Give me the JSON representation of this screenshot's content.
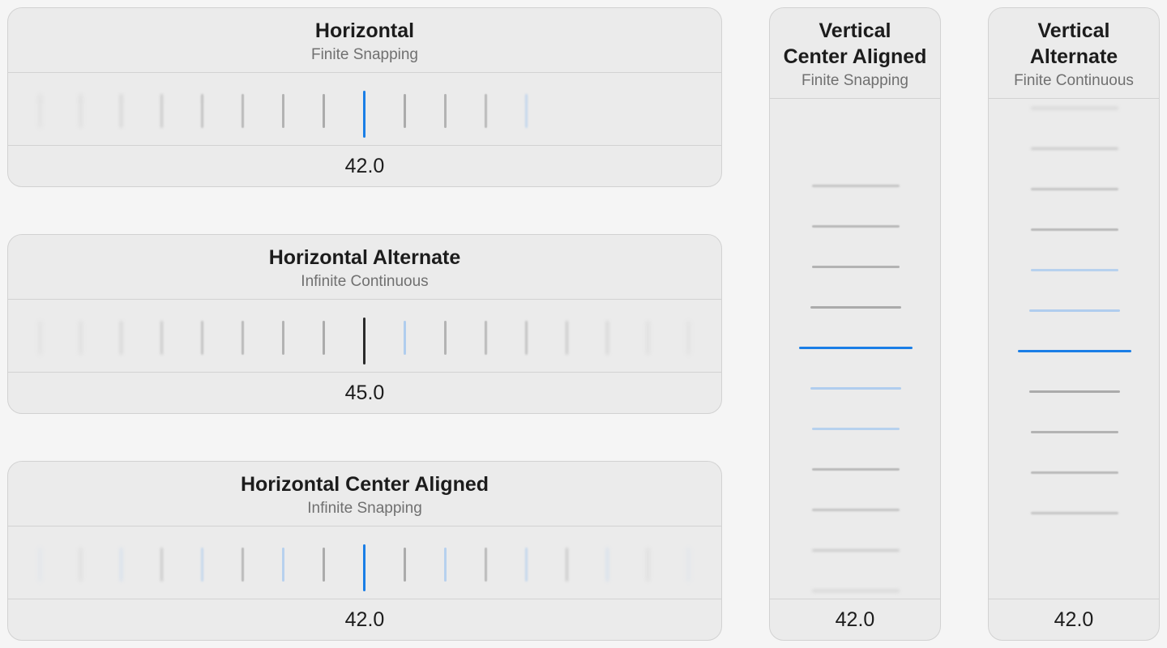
{
  "pickers": {
    "horizontal": {
      "title": "Horizontal",
      "subtitle": "Finite Snapping",
      "value": "42.0"
    },
    "horizontal_alternate": {
      "title": "Horizontal Alternate",
      "subtitle": "Infinite Continuous",
      "value": "45.0"
    },
    "horizontal_center": {
      "title": "Horizontal Center Aligned",
      "subtitle": "Infinite Snapping",
      "value": "42.0"
    },
    "vertical_center": {
      "title_line1": "Vertical",
      "title_line2": "Center Aligned",
      "subtitle": "Finite Snapping",
      "value": "42.0"
    },
    "vertical_alternate": {
      "title_line1": "Vertical",
      "title_line2": "Alternate",
      "subtitle": "Finite Continuous",
      "value": "42.0"
    }
  },
  "colors": {
    "accent": "#1a7ee6",
    "accent_light": "#a8c9ee",
    "tick_gray": "#a3a3a3",
    "tick_dark": "#2a2a2a",
    "card_bg": "#ebebeb",
    "border": "#d2d2d2",
    "page_bg": "#f5f5f5"
  }
}
